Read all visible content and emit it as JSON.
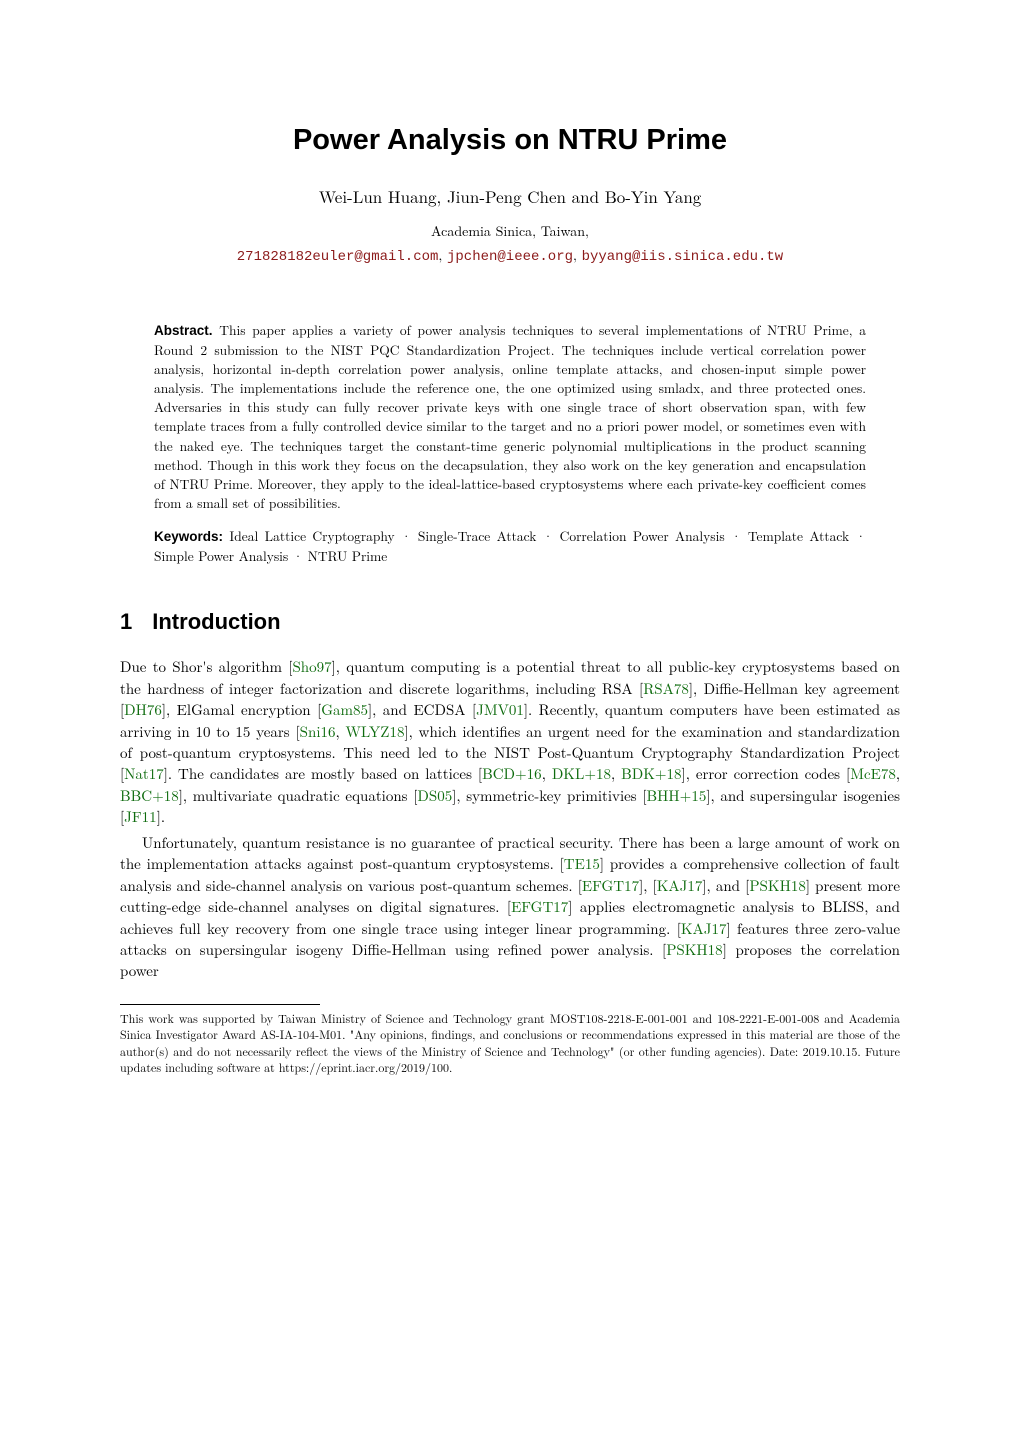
{
  "title": "Power Analysis on NTRU Prime",
  "authors": "Wei-Lun Huang, Jiun-Peng Chen and Bo-Yin Yang",
  "affiliation": "Academia Sinica, Taiwan,",
  "emails": {
    "e1": "271828182euler@gmail.com",
    "e2": "jpchen@ieee.org",
    "e3": "byyang@iis.sinica.edu.tw",
    "link_color": "#8b1a1a"
  },
  "abstract": {
    "label": "Abstract.",
    "text": "This paper applies a variety of power analysis techniques to several implementations of NTRU Prime, a Round 2 submission to the NIST PQC Standardization Project. The techniques include vertical correlation power analysis, horizontal in-depth correlation power analysis, online template attacks, and chosen-input simple power analysis. The implementations include the reference one, the one optimized using smladx, and three protected ones. Adversaries in this study can fully recover private keys with one single trace of short observation span, with few template traces from a fully controlled device similar to the target and no a priori power model, or sometimes even with the naked eye. The techniques target the constant-time generic polynomial multiplications in the product scanning method. Though in this work they focus on the decapsulation, they also work on the key generation and encapsulation of NTRU Prime. Moreover, they apply to the ideal-lattice-based cryptosystems where each private-key coefficient comes from a small set of possibilities."
  },
  "keywords": {
    "label": "Keywords:",
    "text": "Ideal Lattice Cryptography · Single-Trace Attack · Correlation Power Analysis · Template Attack · Simple Power Analysis · NTRU Prime"
  },
  "section1": {
    "num": "1",
    "title": "Introduction"
  },
  "para1": {
    "t1": "Due to Shor's algorithm [",
    "c1": "Sho97",
    "t2": "], quantum computing is a potential threat to all public-key cryptosystems based on the hardness of integer factorization and discrete logarithms, including RSA [",
    "c2": "RSA78",
    "t3": "], Diffie-Hellman key agreement [",
    "c3": "DH76",
    "t4": "], ElGamal encryption [",
    "c4": "Gam85",
    "t5": "], and ECDSA [",
    "c5": "JMV01",
    "t6": "]. Recently, quantum computers have been estimated as arriving in 10 to 15 years [",
    "c6": "Sni16",
    "t7": ", ",
    "c7": "WLYZ18",
    "t8": "], which identifies an urgent need for the examination and standardization of post-quantum cryptosystems. This need led to the NIST Post-Quantum Cryptography Standardization Project [",
    "c8": "Nat17",
    "t9": "]. The candidates are mostly based on lattices [",
    "c9": "BCD+16",
    "t10": ", ",
    "c10": "DKL+18",
    "t11": ", ",
    "c11": "BDK+18",
    "t12": "], error correction codes [",
    "c12": "McE78",
    "t13": ", ",
    "c13": "BBC+18",
    "t14": "], multivariate quadratic equations [",
    "c14": "DS05",
    "t15": "], symmetric-key primitivies [",
    "c15": "BHH+15",
    "t16": "], and supersingular isogenies [",
    "c16": "JF11",
    "t17": "]."
  },
  "para2": {
    "t1": "Unfortunately, quantum resistance is no guarantee of practical security. There has been a large amount of work on the implementation attacks against post-quantum cryptosystems. [",
    "c1": "TE15",
    "t2": "] provides a comprehensive collection of fault analysis and side-channel analysis on various post-quantum schemes. [",
    "c2": "EFGT17",
    "t3": "], [",
    "c3": "KAJ17",
    "t4": "], and [",
    "c4": "PSKH18",
    "t5": "] present more cutting-edge side-channel analyses on digital signatures. [",
    "c5": "EFGT17",
    "t6": "] applies electromagnetic analysis to BLISS, and achieves full key recovery from one single trace using integer linear programming. [",
    "c6": "KAJ17",
    "t7": "] features three zero-value attacks on supersingular isogeny Diffie-Hellman using refined power analysis. [",
    "c7": "PSKH18",
    "t8": "] proposes the correlation power"
  },
  "footnote": "This work was supported by Taiwan Ministry of Science and Technology grant MOST108-2218-E-001-001 and 108-2221-E-001-008 and Academia Sinica Investigator Award AS-IA-104-M01. \"Any opinions, findings, and conclusions or recommendations expressed in this material are those of the author(s) and do not necessarily reflect the views of the Ministry of Science and Technology\" (or other funding agencies). Date: 2019.10.15. Future updates including software at https://eprint.iacr.org/2019/100.",
  "colors": {
    "cite": "#0e6b0e",
    "link": "#8b1a1a",
    "text": "#000000",
    "bg": "#ffffff"
  },
  "fonts": {
    "title_pt": 29,
    "authors_pt": 17,
    "affil_pt": 14,
    "abstract_pt": 13.5,
    "section_pt": 22,
    "body_pt": 15,
    "footnote_pt": 12
  }
}
